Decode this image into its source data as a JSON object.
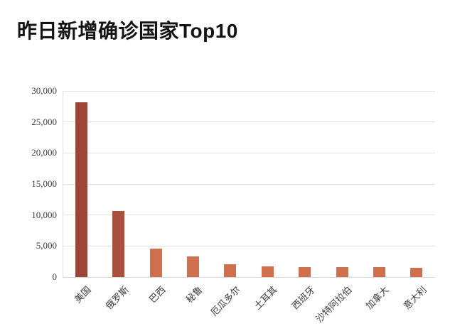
{
  "header": {
    "title": "昨日新增确诊国家Top10"
  },
  "chart_data": {
    "type": "bar",
    "title": "昨日新增确诊国家Top10",
    "categories": [
      "美国",
      "俄罗斯",
      "巴西",
      "秘鲁",
      "厄瓜多尔",
      "土耳其",
      "西班牙",
      "沙特阿拉伯",
      "加拿大",
      "意大利"
    ],
    "values": [
      28200,
      10600,
      4550,
      3300,
      2100,
      1750,
      1650,
      1600,
      1600,
      1450
    ],
    "bar_colors": [
      "#9c4639",
      "#aa4f3d",
      "#d06f4e",
      "#d06f4e",
      "#d06f4e",
      "#d06f4e",
      "#d06f4e",
      "#d06f4e",
      "#d06f4e",
      "#d06f4e"
    ],
    "xlabel": "",
    "ylabel": "",
    "ylim": [
      0,
      30000
    ],
    "ytick_step": 5000,
    "ytick_labels": [
      "0",
      "5,000",
      "10,000",
      "15,000",
      "20,000",
      "25,000",
      "30,000"
    ],
    "grid": true,
    "legend": "none",
    "x_label_rotation": 45
  },
  "colors": {
    "background": "#ffffff",
    "grid": "#e3e3e3",
    "axis": "#e0e0e0",
    "tick_text": "#3d3d3d",
    "title_text": "#141414",
    "bar_dark": "#9c4639",
    "bar_light": "#d06f4e"
  }
}
